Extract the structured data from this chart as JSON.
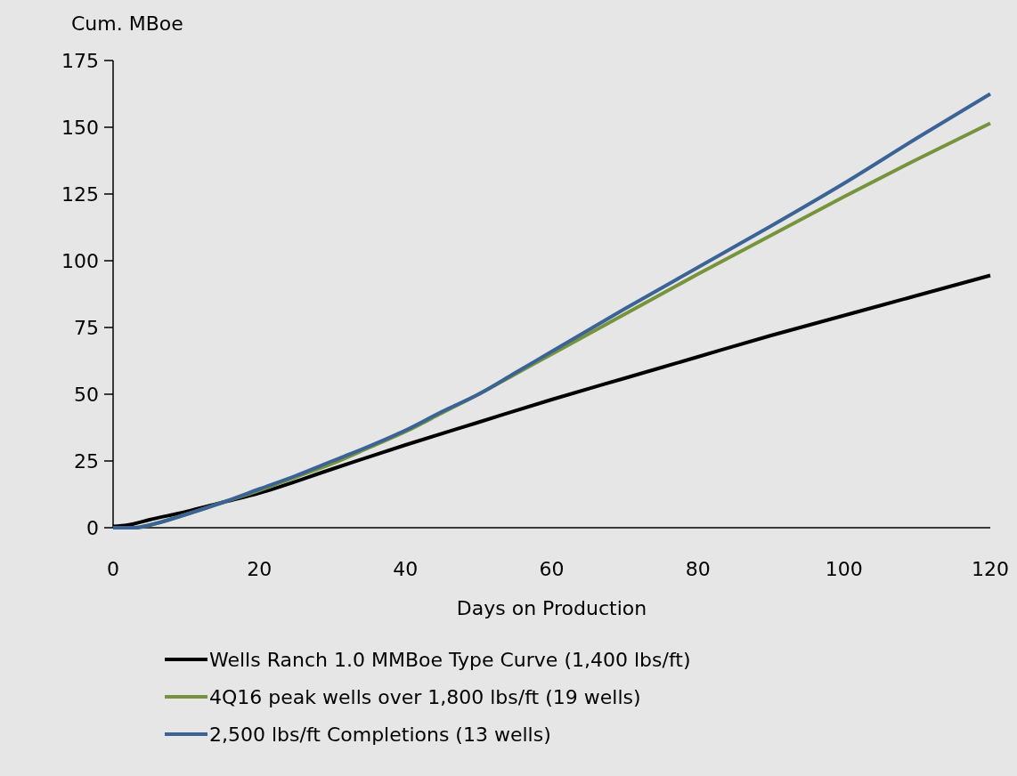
{
  "chart_data": {
    "type": "line",
    "ylabel": "Cum. MBoe",
    "xlabel": "Days on Production",
    "xlim": [
      0,
      120
    ],
    "xticks": [
      0,
      20,
      40,
      60,
      80,
      100,
      120
    ],
    "ylim": [
      0,
      175
    ],
    "yticks": [
      0,
      25,
      50,
      75,
      100,
      125,
      150,
      175
    ],
    "grid": false,
    "legend": "bottom",
    "marker": "none",
    "line_style": "solid",
    "series": [
      {
        "name": "Wells Ranch 1.0 MMBoe Type Curve (1,400 lbs/ft)",
        "color": "#000000",
        "x": [
          0,
          2,
          5,
          10,
          15,
          20,
          30,
          40,
          50,
          60,
          70,
          80,
          90,
          100,
          110,
          120
        ],
        "values": [
          0.5,
          1,
          3,
          6,
          9.5,
          13,
          22,
          31,
          39.5,
          48,
          56,
          64,
          72,
          79.5,
          87,
          94.5
        ]
      },
      {
        "name": "4Q16 peak wells over 1,800 lbs/ft (19 wells)",
        "color": "#77933c",
        "x": [
          0,
          3,
          5,
          10,
          15,
          20,
          25,
          30,
          35,
          40,
          45,
          50,
          55,
          60,
          70,
          80,
          90,
          100,
          110,
          120
        ],
        "values": [
          0,
          0,
          1,
          5,
          9.5,
          14,
          19,
          24,
          30,
          36,
          43,
          50,
          57.5,
          65,
          80,
          95,
          109.5,
          124,
          138,
          151.5
        ]
      },
      {
        "name": "2,500 lbs/ft Completions (13 wells)",
        "color": "#3b6396",
        "x": [
          0,
          3,
          5,
          10,
          15,
          20,
          25,
          30,
          35,
          40,
          45,
          50,
          55,
          60,
          70,
          80,
          90,
          100,
          110,
          120
        ],
        "values": [
          0,
          0,
          1,
          5,
          9.5,
          14.5,
          19.5,
          25,
          30.5,
          36.5,
          43.5,
          50,
          58,
          66,
          82,
          97.5,
          113,
          129,
          146,
          162.5
        ]
      }
    ]
  }
}
